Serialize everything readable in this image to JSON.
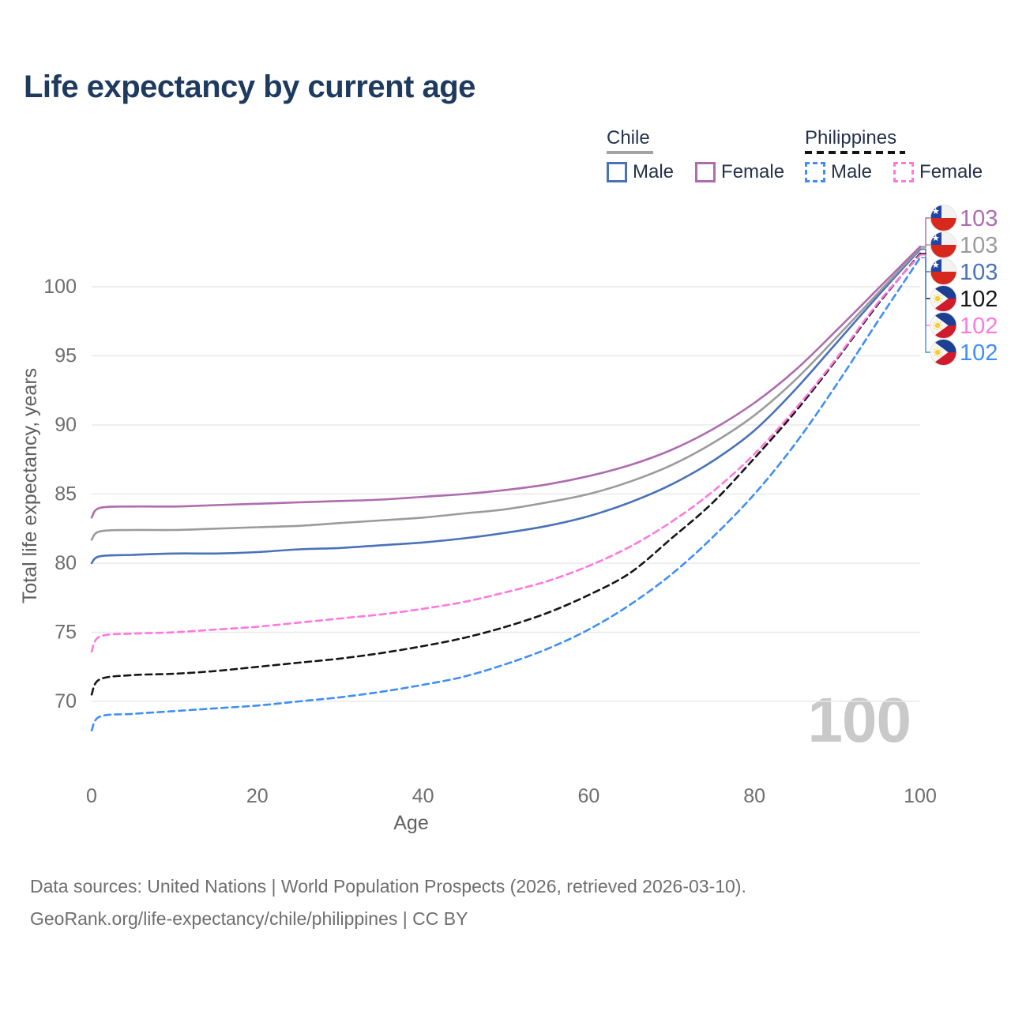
{
  "title": "Life expectancy by current age",
  "legend": {
    "groups": [
      {
        "label": "Chile",
        "line_style": "solid",
        "underline_color": "#a3a3a3",
        "items": [
          {
            "label": "Male",
            "color": "#4a72b8"
          },
          {
            "label": "Female",
            "color": "#ae6cae"
          }
        ]
      },
      {
        "label": "Philippines",
        "line_style": "dashed",
        "underline_color": "#141414",
        "items": [
          {
            "label": "Male",
            "color": "#3f8ef7"
          },
          {
            "label": "Female",
            "color": "#ff78df"
          }
        ]
      }
    ]
  },
  "watermark": "100",
  "footer": {
    "line1": "Data sources: United Nations | World Population Prospects (2026, retrieved 2026-03-10).",
    "line2": "GeoRank.org/life-expectancy/chile/philippines | CC BY"
  },
  "colors": {
    "title": "#1e3a5f",
    "axis_text": "#6e6e6e",
    "grid": "#e8e8e8",
    "watermark": "#c9c9c9",
    "chile_male": "#4a72b8",
    "chile_female": "#ae6cae",
    "chile_all": "#9b9b9b",
    "philippines_male": "#3f8ef7",
    "philippines_female": "#ff78df",
    "philippines_all": "#161616"
  },
  "chart_data": {
    "type": "line",
    "title": "Life expectancy by current age",
    "xlabel": "Age",
    "ylabel": "Total life expectancy, years",
    "x_ticks": [
      0,
      20,
      40,
      60,
      80,
      100
    ],
    "y_ticks": [
      70,
      75,
      80,
      85,
      90,
      95,
      100
    ],
    "xlim": [
      0,
      100
    ],
    "ylim": [
      66.5,
      104.5
    ],
    "grid": "horizontal-only",
    "legend_position": "top-right",
    "x": [
      0,
      1,
      5,
      10,
      15,
      20,
      25,
      30,
      35,
      40,
      45,
      50,
      55,
      60,
      65,
      70,
      75,
      80,
      85,
      90,
      95,
      100
    ],
    "series": [
      {
        "name": "Chile Female",
        "country": "Chile",
        "sex": "Female",
        "color": "#ae6cae",
        "dash": false,
        "end_label": "103",
        "values": [
          83.3,
          84.0,
          84.1,
          84.1,
          84.2,
          84.3,
          84.4,
          84.5,
          84.6,
          84.8,
          85.0,
          85.3,
          85.7,
          86.3,
          87.1,
          88.2,
          89.7,
          91.6,
          94.0,
          96.9,
          99.9,
          102.9
        ]
      },
      {
        "name": "Chile All",
        "country": "Chile",
        "sex": "All",
        "color": "#9b9b9b",
        "dash": false,
        "end_label": "103",
        "values": [
          81.7,
          82.3,
          82.4,
          82.4,
          82.5,
          82.6,
          82.7,
          82.9,
          83.1,
          83.3,
          83.6,
          83.9,
          84.4,
          85.0,
          85.9,
          87.1,
          88.7,
          90.7,
          93.3,
          96.4,
          99.6,
          102.8
        ]
      },
      {
        "name": "Chile Male",
        "country": "Chile",
        "sex": "Male",
        "color": "#4a72b8",
        "dash": false,
        "end_label": "103",
        "values": [
          80.0,
          80.5,
          80.6,
          80.7,
          80.7,
          80.8,
          81.0,
          81.1,
          81.3,
          81.5,
          81.8,
          82.2,
          82.7,
          83.4,
          84.4,
          85.7,
          87.4,
          89.6,
          92.6,
          96.0,
          99.4,
          102.7
        ]
      },
      {
        "name": "Philippines All",
        "country": "Philippines",
        "sex": "All",
        "color": "#161616",
        "dash": true,
        "end_label": "102",
        "values": [
          70.5,
          71.6,
          71.9,
          72.0,
          72.2,
          72.5,
          72.8,
          73.1,
          73.5,
          74.0,
          74.6,
          75.4,
          76.4,
          77.7,
          79.3,
          81.8,
          84.4,
          87.6,
          91.0,
          94.8,
          98.8,
          102.4
        ]
      },
      {
        "name": "Philippines Female",
        "country": "Philippines",
        "sex": "Female",
        "color": "#ff78df",
        "dash": true,
        "end_label": "102",
        "values": [
          73.6,
          74.7,
          74.9,
          75.0,
          75.2,
          75.4,
          75.7,
          76.0,
          76.3,
          76.7,
          77.2,
          77.9,
          78.7,
          79.8,
          81.2,
          83.0,
          85.2,
          87.9,
          91.2,
          94.9,
          98.9,
          102.3
        ]
      },
      {
        "name": "Philippines Male",
        "country": "Philippines",
        "sex": "Male",
        "color": "#3f8ef7",
        "dash": true,
        "end_label": "102",
        "values": [
          67.9,
          68.9,
          69.1,
          69.3,
          69.5,
          69.7,
          70.0,
          70.3,
          70.7,
          71.2,
          71.8,
          72.7,
          73.8,
          75.2,
          77.0,
          79.2,
          81.9,
          85.0,
          88.7,
          93.0,
          97.6,
          102.1
        ]
      }
    ]
  }
}
